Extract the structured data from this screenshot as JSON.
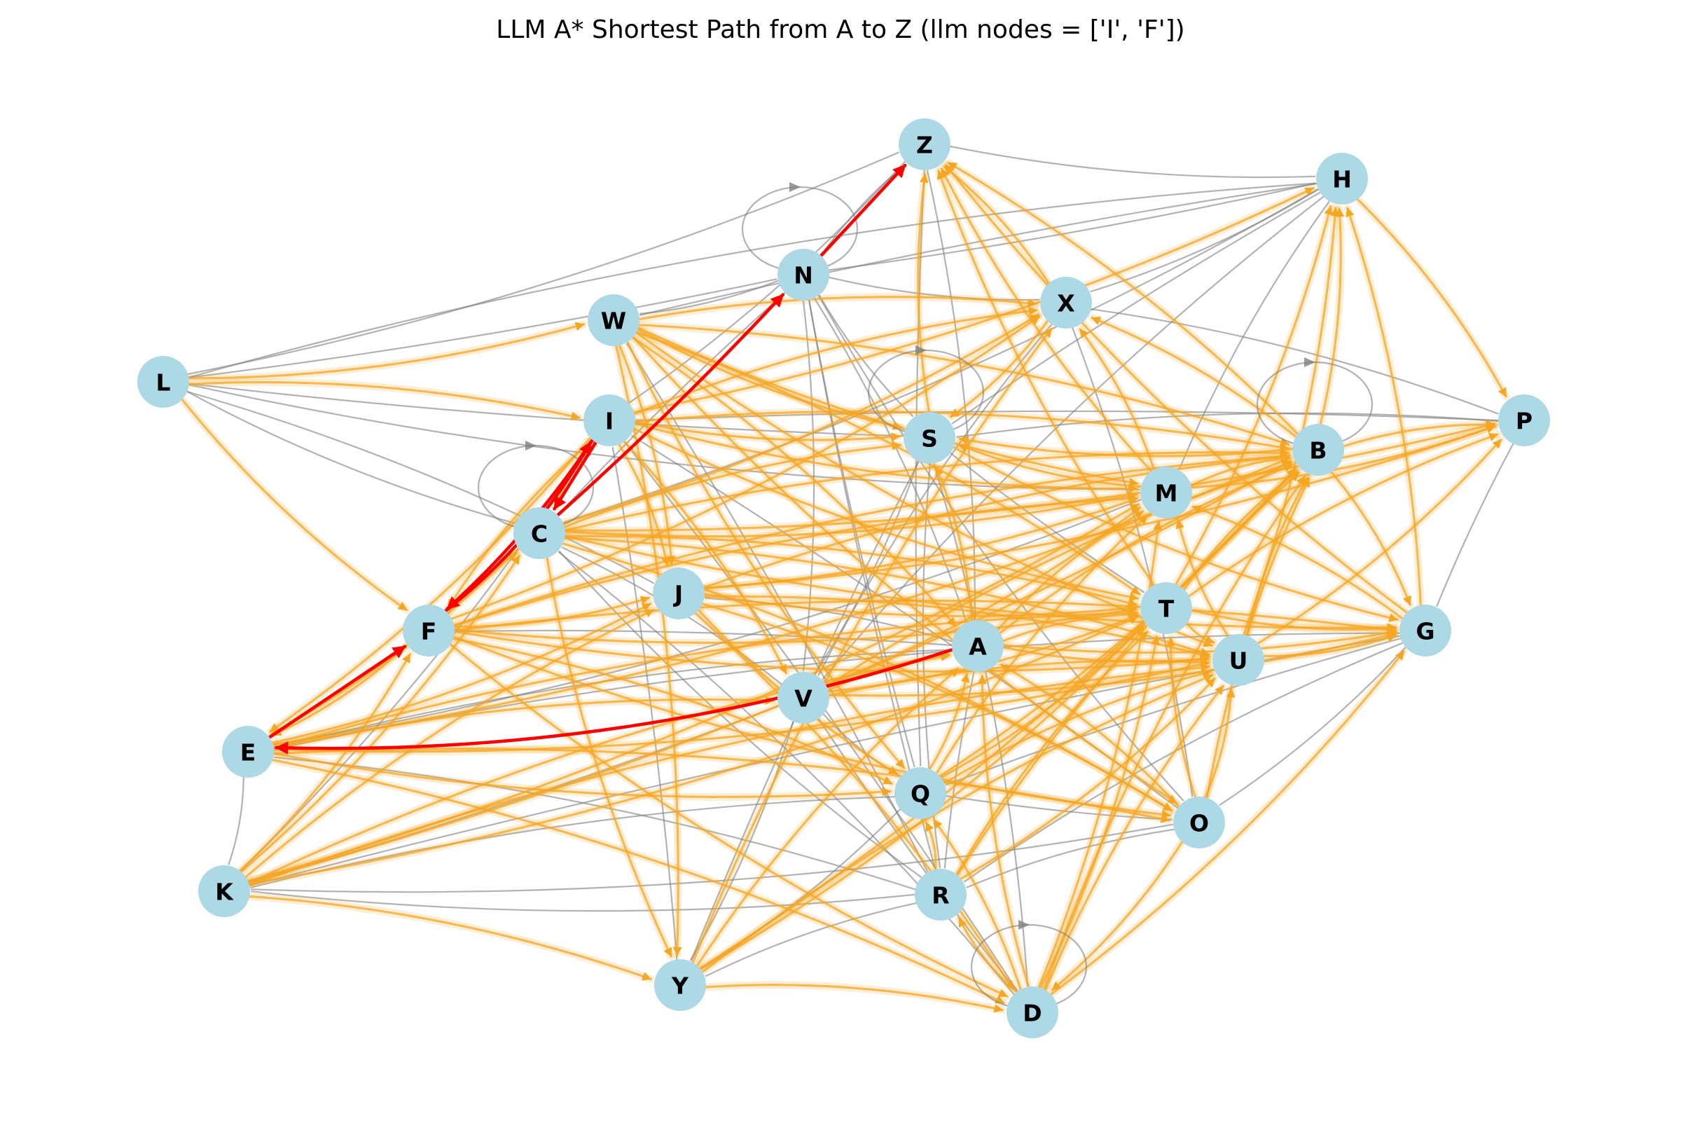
{
  "title": "LLM A* Shortest Path from A to Z (llm nodes = ['I', 'F'])",
  "colors": {
    "node_fill": "#add8e6",
    "base_edge": "#7f7f7f",
    "explored_edge": "#f5a623",
    "path_edge": "#ff0000",
    "label": "#000000"
  },
  "nodes": [
    "A",
    "B",
    "C",
    "D",
    "E",
    "F",
    "G",
    "H",
    "I",
    "J",
    "K",
    "L",
    "M",
    "N",
    "O",
    "P",
    "Q",
    "R",
    "S",
    "T",
    "U",
    "V",
    "W",
    "X",
    "Y",
    "Z"
  ],
  "self_loops": [
    "N",
    "S",
    "C",
    "B",
    "D"
  ],
  "shortest_path": [
    "A",
    "E",
    "F",
    "I",
    "C",
    "N",
    "Z"
  ],
  "llm_nodes": [
    "I",
    "F"
  ],
  "edges": [
    [
      "L",
      "Z"
    ],
    [
      "L",
      "H"
    ],
    [
      "L",
      "N"
    ],
    [
      "L",
      "C"
    ],
    [
      "L",
      "J"
    ],
    [
      "L",
      "S"
    ],
    [
      "L",
      "M"
    ],
    [
      "N",
      "Z"
    ],
    [
      "N",
      "H"
    ],
    [
      "N",
      "X"
    ],
    [
      "N",
      "W"
    ],
    [
      "N",
      "C"
    ],
    [
      "N",
      "S"
    ],
    [
      "N",
      "A"
    ],
    [
      "N",
      "Q"
    ],
    [
      "N",
      "O"
    ],
    [
      "N",
      "V"
    ],
    [
      "N",
      "R"
    ],
    [
      "Z",
      "H"
    ],
    [
      "Z",
      "I"
    ],
    [
      "Z",
      "S"
    ],
    [
      "Z",
      "X"
    ],
    [
      "Z",
      "A"
    ],
    [
      "Z",
      "Q"
    ],
    [
      "Z",
      "T"
    ],
    [
      "H",
      "X"
    ],
    [
      "H",
      "S"
    ],
    [
      "H",
      "M"
    ],
    [
      "H",
      "C"
    ],
    [
      "H",
      "W"
    ],
    [
      "H",
      "V"
    ],
    [
      "X",
      "P"
    ],
    [
      "X",
      "S"
    ],
    [
      "X",
      "V"
    ],
    [
      "X",
      "O"
    ],
    [
      "X",
      "Y"
    ],
    [
      "P",
      "B"
    ],
    [
      "P",
      "M"
    ],
    [
      "P",
      "G"
    ],
    [
      "P",
      "S"
    ],
    [
      "P",
      "C"
    ],
    [
      "P",
      "I"
    ],
    [
      "B",
      "M"
    ],
    [
      "B",
      "G"
    ],
    [
      "B",
      "Y"
    ],
    [
      "B",
      "A"
    ],
    [
      "S",
      "V"
    ],
    [
      "S",
      "Y"
    ],
    [
      "S",
      "R"
    ],
    [
      "S",
      "D"
    ],
    [
      "S",
      "T"
    ],
    [
      "M",
      "V"
    ],
    [
      "M",
      "E"
    ],
    [
      "M",
      "K"
    ],
    [
      "M",
      "F"
    ],
    [
      "G",
      "V"
    ],
    [
      "G",
      "Q"
    ],
    [
      "G",
      "R"
    ],
    [
      "G",
      "O"
    ],
    [
      "G",
      "K"
    ],
    [
      "G",
      "E"
    ],
    [
      "T",
      "C"
    ],
    [
      "T",
      "J"
    ],
    [
      "T",
      "E"
    ],
    [
      "T",
      "R"
    ],
    [
      "U",
      "J"
    ],
    [
      "U",
      "C"
    ],
    [
      "U",
      "O"
    ],
    [
      "U",
      "V"
    ],
    [
      "U",
      "E"
    ],
    [
      "U",
      "R"
    ],
    [
      "A",
      "F"
    ],
    [
      "A",
      "J"
    ],
    [
      "A",
      "V"
    ],
    [
      "A",
      "K"
    ],
    [
      "A",
      "E"
    ],
    [
      "A",
      "D"
    ],
    [
      "A",
      "R"
    ],
    [
      "V",
      "C"
    ],
    [
      "V",
      "Y"
    ],
    [
      "V",
      "D"
    ],
    [
      "V",
      "Q"
    ],
    [
      "V",
      "E"
    ],
    [
      "Q",
      "E"
    ],
    [
      "Q",
      "K"
    ],
    [
      "Q",
      "Y"
    ],
    [
      "Q",
      "O"
    ],
    [
      "Q",
      "D"
    ],
    [
      "O",
      "K"
    ],
    [
      "O",
      "E"
    ],
    [
      "O",
      "R"
    ],
    [
      "O",
      "W"
    ],
    [
      "O",
      "I"
    ],
    [
      "R",
      "Y"
    ],
    [
      "R",
      "C"
    ],
    [
      "R",
      "W"
    ],
    [
      "R",
      "E"
    ],
    [
      "R",
      "K"
    ],
    [
      "D",
      "J"
    ],
    [
      "D",
      "C"
    ],
    [
      "D",
      "F"
    ],
    [
      "D",
      "I"
    ],
    [
      "D",
      "G"
    ],
    [
      "E",
      "K"
    ],
    [
      "K",
      "F"
    ],
    [
      "K",
      "I"
    ],
    [
      "K",
      "J"
    ],
    [
      "K",
      "V"
    ],
    [
      "Y",
      "C"
    ],
    [
      "Y",
      "W"
    ],
    [
      "Y",
      "I"
    ],
    [
      "F",
      "J"
    ],
    [
      "F",
      "C"
    ],
    [
      "J",
      "W"
    ]
  ],
  "explored_edges": [
    [
      "L",
      "W"
    ],
    [
      "L",
      "I"
    ],
    [
      "L",
      "F"
    ],
    [
      "W",
      "X"
    ],
    [
      "W",
      "S"
    ],
    [
      "W",
      "T"
    ],
    [
      "W",
      "U"
    ],
    [
      "W",
      "A"
    ],
    [
      "W",
      "O"
    ],
    [
      "W",
      "B"
    ],
    [
      "W",
      "M"
    ],
    [
      "W",
      "J"
    ],
    [
      "W",
      "Q"
    ],
    [
      "W",
      "Y"
    ],
    [
      "I",
      "S"
    ],
    [
      "I",
      "X"
    ],
    [
      "I",
      "M"
    ],
    [
      "I",
      "E"
    ],
    [
      "I",
      "F"
    ],
    [
      "I",
      "J"
    ],
    [
      "I",
      "H"
    ],
    [
      "I",
      "B"
    ],
    [
      "I",
      "C"
    ],
    [
      "I",
      "V"
    ],
    [
      "I",
      "T"
    ],
    [
      "F",
      "G"
    ],
    [
      "F",
      "T"
    ],
    [
      "F",
      "B"
    ],
    [
      "F",
      "D"
    ],
    [
      "F",
      "Q"
    ],
    [
      "F",
      "O"
    ],
    [
      "F",
      "E"
    ],
    [
      "F",
      "X"
    ],
    [
      "F",
      "C"
    ],
    [
      "F",
      "U"
    ],
    [
      "F",
      "M"
    ],
    [
      "F",
      "J"
    ],
    [
      "C",
      "S"
    ],
    [
      "C",
      "X"
    ],
    [
      "C",
      "B"
    ],
    [
      "C",
      "M"
    ],
    [
      "C",
      "T"
    ],
    [
      "C",
      "G"
    ],
    [
      "C",
      "U"
    ],
    [
      "C",
      "P"
    ],
    [
      "C",
      "O"
    ],
    [
      "C",
      "Y"
    ],
    [
      "C",
      "E"
    ],
    [
      "J",
      "T"
    ],
    [
      "J",
      "B"
    ],
    [
      "J",
      "M"
    ],
    [
      "J",
      "U"
    ],
    [
      "J",
      "P"
    ],
    [
      "J",
      "O"
    ],
    [
      "J",
      "Q"
    ],
    [
      "J",
      "D"
    ],
    [
      "E",
      "I"
    ],
    [
      "E",
      "C"
    ],
    [
      "E",
      "J"
    ],
    [
      "E",
      "V"
    ],
    [
      "E",
      "U"
    ],
    [
      "E",
      "O"
    ],
    [
      "E",
      "Q"
    ],
    [
      "E",
      "D"
    ],
    [
      "E",
      "B"
    ],
    [
      "E",
      "T"
    ],
    [
      "K",
      "C"
    ],
    [
      "K",
      "J"
    ],
    [
      "K",
      "T"
    ],
    [
      "K",
      "A"
    ],
    [
      "K",
      "B"
    ],
    [
      "K",
      "U"
    ],
    [
      "K",
      "M"
    ],
    [
      "K",
      "Y"
    ],
    [
      "K",
      "F"
    ],
    [
      "Y",
      "A"
    ],
    [
      "Y",
      "T"
    ],
    [
      "Y",
      "U"
    ],
    [
      "Y",
      "B"
    ],
    [
      "Y",
      "D"
    ],
    [
      "Y",
      "C"
    ],
    [
      "Y",
      "X"
    ],
    [
      "D",
      "Q"
    ],
    [
      "D",
      "R"
    ],
    [
      "D",
      "T"
    ],
    [
      "D",
      "U"
    ],
    [
      "D",
      "M"
    ],
    [
      "D",
      "B"
    ],
    [
      "D",
      "G"
    ],
    [
      "D",
      "A"
    ],
    [
      "D",
      "E"
    ],
    [
      "R",
      "T"
    ],
    [
      "R",
      "U"
    ],
    [
      "R",
      "B"
    ],
    [
      "R",
      "Q"
    ],
    [
      "R",
      "D"
    ],
    [
      "Q",
      "T"
    ],
    [
      "Q",
      "U"
    ],
    [
      "Q",
      "A"
    ],
    [
      "Q",
      "M"
    ],
    [
      "Q",
      "B"
    ],
    [
      "O",
      "T"
    ],
    [
      "O",
      "U"
    ],
    [
      "O",
      "B"
    ],
    [
      "O",
      "A"
    ],
    [
      "O",
      "D"
    ],
    [
      "V",
      "T"
    ],
    [
      "V",
      "U"
    ],
    [
      "V",
      "M"
    ],
    [
      "V",
      "B"
    ],
    [
      "V",
      "G"
    ],
    [
      "V",
      "A"
    ],
    [
      "A",
      "S"
    ],
    [
      "A",
      "T"
    ],
    [
      "A",
      "U"
    ],
    [
      "A",
      "B"
    ],
    [
      "A",
      "G"
    ],
    [
      "A",
      "M"
    ],
    [
      "T",
      "U"
    ],
    [
      "T",
      "B"
    ],
    [
      "T",
      "G"
    ],
    [
      "T",
      "P"
    ],
    [
      "T",
      "H"
    ],
    [
      "T",
      "Z"
    ],
    [
      "U",
      "G"
    ],
    [
      "U",
      "B"
    ],
    [
      "U",
      "P"
    ],
    [
      "U",
      "M"
    ],
    [
      "U",
      "H"
    ],
    [
      "M",
      "B"
    ],
    [
      "M",
      "P"
    ],
    [
      "M",
      "Z"
    ],
    [
      "M",
      "X"
    ],
    [
      "M",
      "S"
    ],
    [
      "B",
      "H"
    ],
    [
      "B",
      "P"
    ],
    [
      "B",
      "Z"
    ],
    [
      "B",
      "G"
    ],
    [
      "B",
      "X"
    ],
    [
      "B",
      "S"
    ],
    [
      "G",
      "H"
    ],
    [
      "G",
      "Z"
    ],
    [
      "G",
      "M"
    ],
    [
      "H",
      "P"
    ],
    [
      "X",
      "Z"
    ],
    [
      "X",
      "S"
    ],
    [
      "S",
      "G"
    ],
    [
      "S",
      "Z"
    ]
  ]
}
